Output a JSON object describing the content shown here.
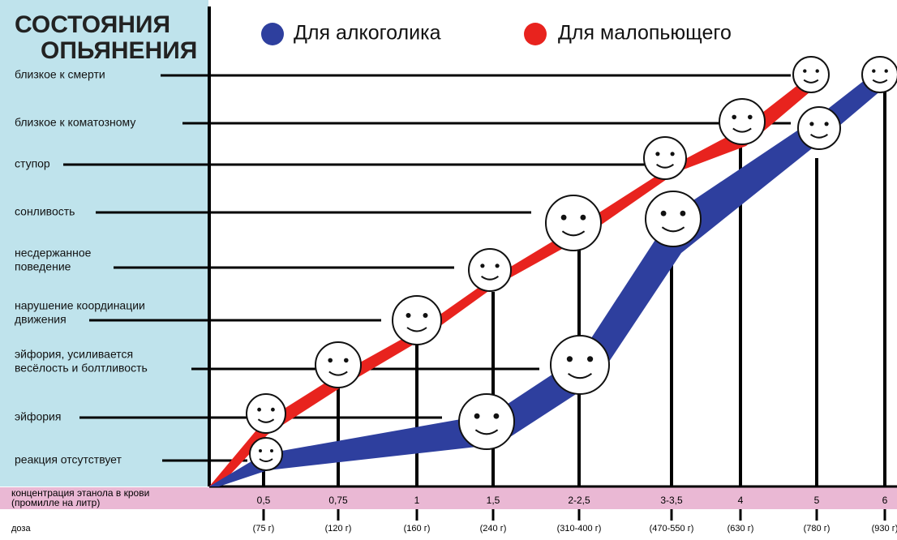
{
  "header": {
    "title": [
      "СОСТОЯНИЯ",
      "ОПЬЯНЕНИЯ"
    ]
  },
  "legend": [
    "Для алкоголика",
    "Для малопьющего"
  ],
  "states": [
    [
      "близкое к смерти"
    ],
    [
      "близкое к коматозному"
    ],
    [
      "ступор"
    ],
    [
      "сонливость"
    ],
    [
      "несдержанное",
      "поведение"
    ],
    [
      "нарушение координации",
      "движения"
    ],
    [
      "эйфория, усиливается",
      "весёлость и болтливость"
    ],
    [
      "эйфория"
    ],
    [
      "реакция отсутствует"
    ]
  ],
  "concentration": {
    "label": [
      "концентрация этанола в крови",
      "(промилле на литр)"
    ],
    "values": [
      "0,5",
      "0,75",
      "1",
      "1,5",
      "2-2,5",
      "3-3,5",
      "4",
      "5",
      "6"
    ]
  },
  "dose": {
    "label": "доза",
    "values": [
      "(75 г)",
      "(120 г)",
      "(160 г)",
      "(240 г)",
      "(310-400 г)",
      "(470-550 г)",
      "(630 г)",
      "(780 г)",
      "(930 г)"
    ]
  }
}
